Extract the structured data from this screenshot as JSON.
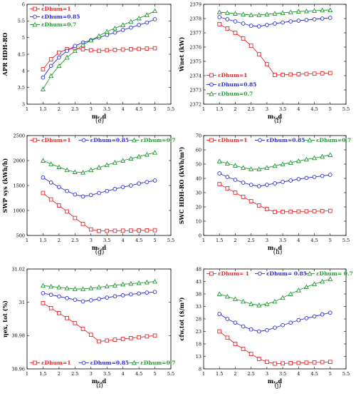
{
  "colors": {
    "s1": "#e8262a",
    "s2": "#2b2bd6",
    "s3": "#1f9a2e"
  },
  "chart_data": [
    {
      "type": "line",
      "panel_label": "(e)",
      "xlabel": "mᵣ,d",
      "ylabel": "APR HDH-RO",
      "xlim": [
        1,
        5.5
      ],
      "ylim": [
        3,
        6
      ],
      "xticks": [
        1,
        1.5,
        2,
        2.5,
        3,
        3.5,
        4,
        4.5,
        5,
        5.5
      ],
      "xtick_labels": [
        "1",
        "1.5",
        "2",
        "2.5",
        "3",
        "3.5",
        "4",
        "4.5",
        "5",
        "5.5"
      ],
      "yticks": [
        3,
        3.5,
        4,
        4.5,
        5,
        5.5,
        6
      ],
      "ytick_labels": [
        "3",
        "3.5",
        "4",
        "4.5",
        "5",
        "5.5",
        "6"
      ],
      "legend": "top-left",
      "x": [
        1.5,
        1.75,
        2,
        2.25,
        2.5,
        2.75,
        3,
        3.25,
        3.5,
        3.75,
        4,
        4.25,
        4.5,
        4.75,
        5
      ],
      "series": [
        {
          "name": "εDhum=1",
          "color": "#e8262a",
          "marker": "square",
          "values": [
            4.05,
            4.35,
            4.55,
            4.65,
            4.68,
            4.65,
            4.62,
            4.6,
            4.62,
            4.63,
            4.64,
            4.65,
            4.66,
            4.67,
            4.68
          ]
        },
        {
          "name": "εDhum=0.85",
          "color": "#2b2bd6",
          "marker": "circle",
          "values": [
            3.8,
            4.15,
            4.4,
            4.6,
            4.75,
            4.85,
            4.92,
            5.0,
            5.08,
            5.15,
            5.23,
            5.3,
            5.38,
            5.45,
            5.55
          ]
        },
        {
          "name": "εDhum=0.7",
          "color": "#1f9a2e",
          "marker": "triangle",
          "values": [
            3.45,
            3.85,
            4.15,
            4.4,
            4.6,
            4.78,
            4.92,
            5.05,
            5.18,
            5.28,
            5.38,
            5.48,
            5.58,
            5.68,
            5.8
          ]
        }
      ]
    },
    {
      "type": "line",
      "panel_label": "(f)",
      "xlabel": "mᵣ,d",
      "ylabel": "Ẇnet (kW)",
      "xlim": [
        1,
        5.5
      ],
      "ylim": [
        2372,
        2379
      ],
      "xticks": [
        1,
        1.5,
        2,
        2.5,
        3,
        3.5,
        4,
        4.5,
        5,
        5.5
      ],
      "xtick_labels": [
        "1",
        "1.5",
        "2",
        "2.5",
        "3",
        "3.5",
        "4",
        "4.5",
        "5",
        "5.5"
      ],
      "yticks": [
        2372,
        2373,
        2374,
        2375,
        2376,
        2377,
        2378,
        2379
      ],
      "ytick_labels": [
        "2372",
        "2373",
        "2374",
        "2375",
        "2376",
        "2377",
        "2378",
        "2379"
      ],
      "legend": "bottom-left",
      "x": [
        1.5,
        1.75,
        2,
        2.25,
        2.5,
        2.75,
        3,
        3.25,
        3.5,
        3.75,
        4,
        4.25,
        4.5,
        4.75,
        5
      ],
      "series": [
        {
          "name": "εDhum=1",
          "color": "#e8262a",
          "marker": "square",
          "values": [
            2377.6,
            2377.3,
            2377.0,
            2376.6,
            2376.1,
            2375.5,
            2374.8,
            2374.05,
            2374.06,
            2374.08,
            2374.1,
            2374.12,
            2374.14,
            2374.16,
            2374.18
          ]
        },
        {
          "name": "εDhum=0.85",
          "color": "#2b2bd6",
          "marker": "circle",
          "values": [
            2378.1,
            2377.95,
            2377.8,
            2377.65,
            2377.5,
            2377.45,
            2377.55,
            2377.65,
            2377.72,
            2377.8,
            2377.85,
            2377.9,
            2377.95,
            2378.0,
            2378.05
          ]
        },
        {
          "name": "εDhum=0.7",
          "color": "#1f9a2e",
          "marker": "triangle",
          "values": [
            2378.45,
            2378.4,
            2378.35,
            2378.3,
            2378.25,
            2378.25,
            2378.3,
            2378.35,
            2378.4,
            2378.45,
            2378.5,
            2378.52,
            2378.55,
            2378.58,
            2378.6
          ]
        }
      ]
    },
    {
      "type": "line",
      "panel_label": "(g)",
      "xlabel": "mᵣ,d",
      "ylabel": "SWP sys (kWh/h)",
      "xlim": [
        1,
        5.5
      ],
      "ylim": [
        500,
        2500
      ],
      "xticks": [
        1,
        1.5,
        2,
        2.5,
        3,
        3.5,
        4,
        4.5,
        5,
        5.5
      ],
      "xtick_labels": [
        "1",
        "1.5",
        "2",
        "2.5",
        "3",
        "3.5",
        "4",
        "4.5",
        "5",
        "5.5"
      ],
      "yticks": [
        500,
        1000,
        1500,
        2000,
        2500
      ],
      "ytick_labels": [
        "500",
        "1000",
        "1500",
        "2000",
        "2500"
      ],
      "legend": "top",
      "x": [
        1.5,
        1.75,
        2,
        2.25,
        2.5,
        2.75,
        3,
        3.25,
        3.5,
        3.75,
        4,
        4.25,
        4.5,
        4.75,
        5
      ],
      "series": [
        {
          "name": "εDhum=1",
          "color": "#e8262a",
          "marker": "square",
          "values": [
            1350,
            1220,
            1100,
            980,
            850,
            730,
            620,
            590,
            592,
            594,
            596,
            598,
            600,
            602,
            605
          ]
        },
        {
          "name": "εDhum=0.85",
          "color": "#2b2bd6",
          "marker": "circle",
          "values": [
            1660,
            1560,
            1470,
            1390,
            1320,
            1280,
            1310,
            1350,
            1390,
            1430,
            1470,
            1500,
            1540,
            1570,
            1600
          ]
        },
        {
          "name": "εDhum=0.7",
          "color": "#1f9a2e",
          "marker": "triangle",
          "values": [
            2000,
            1930,
            1870,
            1810,
            1770,
            1760,
            1810,
            1860,
            1910,
            1960,
            2000,
            2040,
            2080,
            2120,
            2160
          ]
        }
      ]
    },
    {
      "type": "line",
      "panel_label": "(h)",
      "xlabel": "mᵣ,d",
      "ylabel": "SWC HDH-RO (kWh/m³)",
      "xlim": [
        1,
        5.5
      ],
      "ylim": [
        0,
        70
      ],
      "xticks": [
        1,
        1.5,
        2,
        2.5,
        3,
        3.5,
        4,
        4.5,
        5,
        5.5
      ],
      "xtick_labels": [
        "1",
        "1.5",
        "2",
        "2.5",
        "3",
        "3.5",
        "4",
        "4.5",
        "5",
        "5.5"
      ],
      "yticks": [
        0,
        10,
        20,
        30,
        40,
        50,
        60,
        70
      ],
      "ytick_labels": [
        "0",
        "10",
        "20",
        "30",
        "40",
        "50",
        "60",
        "70"
      ],
      "legend": "top",
      "x": [
        1.5,
        1.75,
        2,
        2.25,
        2.5,
        2.75,
        3,
        3.25,
        3.5,
        3.75,
        4,
        4.25,
        4.5,
        4.75,
        5
      ],
      "series": [
        {
          "name": "εDhum=1",
          "color": "#e8262a",
          "marker": "square",
          "values": [
            36,
            33,
            30,
            27,
            24,
            21,
            18.5,
            16.5,
            16.6,
            16.7,
            16.8,
            16.9,
            17.0,
            17.1,
            17.2
          ]
        },
        {
          "name": "εDhum=0.85",
          "color": "#2b2bd6",
          "marker": "circle",
          "values": [
            43.5,
            41,
            39,
            37,
            35.5,
            34.5,
            35.5,
            36.5,
            37.5,
            38.5,
            39.5,
            40.3,
            41,
            41.7,
            42.5
          ]
        },
        {
          "name": "εDhum=0.7",
          "color": "#1f9a2e",
          "marker": "triangle",
          "values": [
            52,
            50.5,
            49,
            47.5,
            46.5,
            46.5,
            47.5,
            48.8,
            50,
            51,
            52.2,
            53.3,
            54.3,
            55.3,
            56.5
          ]
        }
      ]
    },
    {
      "type": "line",
      "panel_label": "(i)",
      "xlabel": "mᵣ,d",
      "ylabel": "ηex, tot (%)",
      "xlim": [
        1,
        5.5
      ],
      "ylim": [
        30.96,
        31.02
      ],
      "xticks": [
        1,
        1.5,
        2,
        2.5,
        3,
        3.5,
        4,
        4.5,
        5,
        5.5
      ],
      "xtick_labels": [
        "1",
        "1.5",
        "2",
        "2.5",
        "3",
        "3.5",
        "4",
        "4.5",
        "5",
        "5.5"
      ],
      "yticks": [
        30.96,
        30.98,
        31,
        31.02
      ],
      "ytick_labels": [
        "30.96",
        "30.98",
        "31",
        "31.02"
      ],
      "legend": "bottom",
      "x": [
        1.5,
        1.75,
        2,
        2.25,
        2.5,
        2.75,
        3,
        3.25,
        3.5,
        3.75,
        4,
        4.25,
        4.5,
        4.75,
        5
      ],
      "series": [
        {
          "name": "εDhum=1",
          "color": "#e8262a",
          "marker": "square",
          "values": [
            30.9995,
            30.9965,
            30.9935,
            30.9905,
            30.9875,
            30.984,
            30.9805,
            30.9765,
            30.977,
            30.9775,
            30.978,
            30.9785,
            30.979,
            30.9795,
            30.98
          ]
        },
        {
          "name": "εDhum=0.85",
          "color": "#2b2bd6",
          "marker": "circle",
          "values": [
            31.0055,
            31.0045,
            31.0035,
            31.0025,
            31.0015,
            31.0005,
            31.0012,
            31.002,
            31.0028,
            31.0036,
            31.0042,
            31.0048,
            31.0053,
            31.0058,
            31.0062
          ]
        },
        {
          "name": "εDhum=0.7",
          "color": "#1f9a2e",
          "marker": "triangle",
          "values": [
            31.01,
            31.0095,
            31.009,
            31.0085,
            31.008,
            31.008,
            31.0085,
            31.009,
            31.0096,
            31.0102,
            31.0108,
            31.0112,
            31.0116,
            31.012,
            31.0125
          ]
        }
      ]
    },
    {
      "type": "line",
      "panel_label": "(j)",
      "xlabel": "mᵣ,d",
      "ylabel": "cfw,tot ($/m³)",
      "xlim": [
        1,
        5.5
      ],
      "ylim": [
        8,
        48
      ],
      "xticks": [
        1,
        1.5,
        2,
        2.5,
        3,
        3.5,
        4,
        4.5,
        5,
        5.5
      ],
      "xtick_labels": [
        "1",
        "1.5",
        "2",
        "2.5",
        "3",
        "3.5",
        "4",
        "4.5",
        "5",
        "5.5"
      ],
      "yticks": [
        8,
        13,
        18,
        23,
        28,
        33,
        38,
        43,
        48
      ],
      "ytick_labels": [
        "8",
        "13",
        "18",
        "23",
        "28",
        "33",
        "38",
        "43",
        "48"
      ],
      "legend": "top",
      "legend_labels": [
        "εDhum= 1",
        "εDhum= 0.85",
        "εDhum= 0.7"
      ],
      "x": [
        1.5,
        1.75,
        2,
        2.25,
        2.5,
        2.75,
        3,
        3.25,
        3.5,
        3.75,
        4,
        4.25,
        4.5,
        4.75,
        5
      ],
      "series": [
        {
          "name": "εDhum= 1",
          "color": "#e8262a",
          "marker": "square",
          "values": [
            23,
            20.5,
            18,
            16,
            14,
            12,
            10.8,
            10.1,
            10.2,
            10.3,
            10.4,
            10.5,
            10.6,
            10.7,
            10.8
          ]
        },
        {
          "name": "εDhum= 0.85",
          "color": "#2b2bd6",
          "marker": "circle",
          "values": [
            30,
            28,
            26.5,
            25,
            23.8,
            23,
            23.5,
            24.5,
            25.5,
            26.5,
            27.5,
            28.3,
            29,
            29.8,
            30.5
          ]
        },
        {
          "name": "εDhum= 0.7",
          "color": "#1f9a2e",
          "marker": "triangle",
          "values": [
            38,
            37,
            36,
            35,
            34,
            33.5,
            34,
            35,
            36.5,
            38,
            39.5,
            40.8,
            42,
            43,
            44
          ]
        }
      ]
    }
  ]
}
